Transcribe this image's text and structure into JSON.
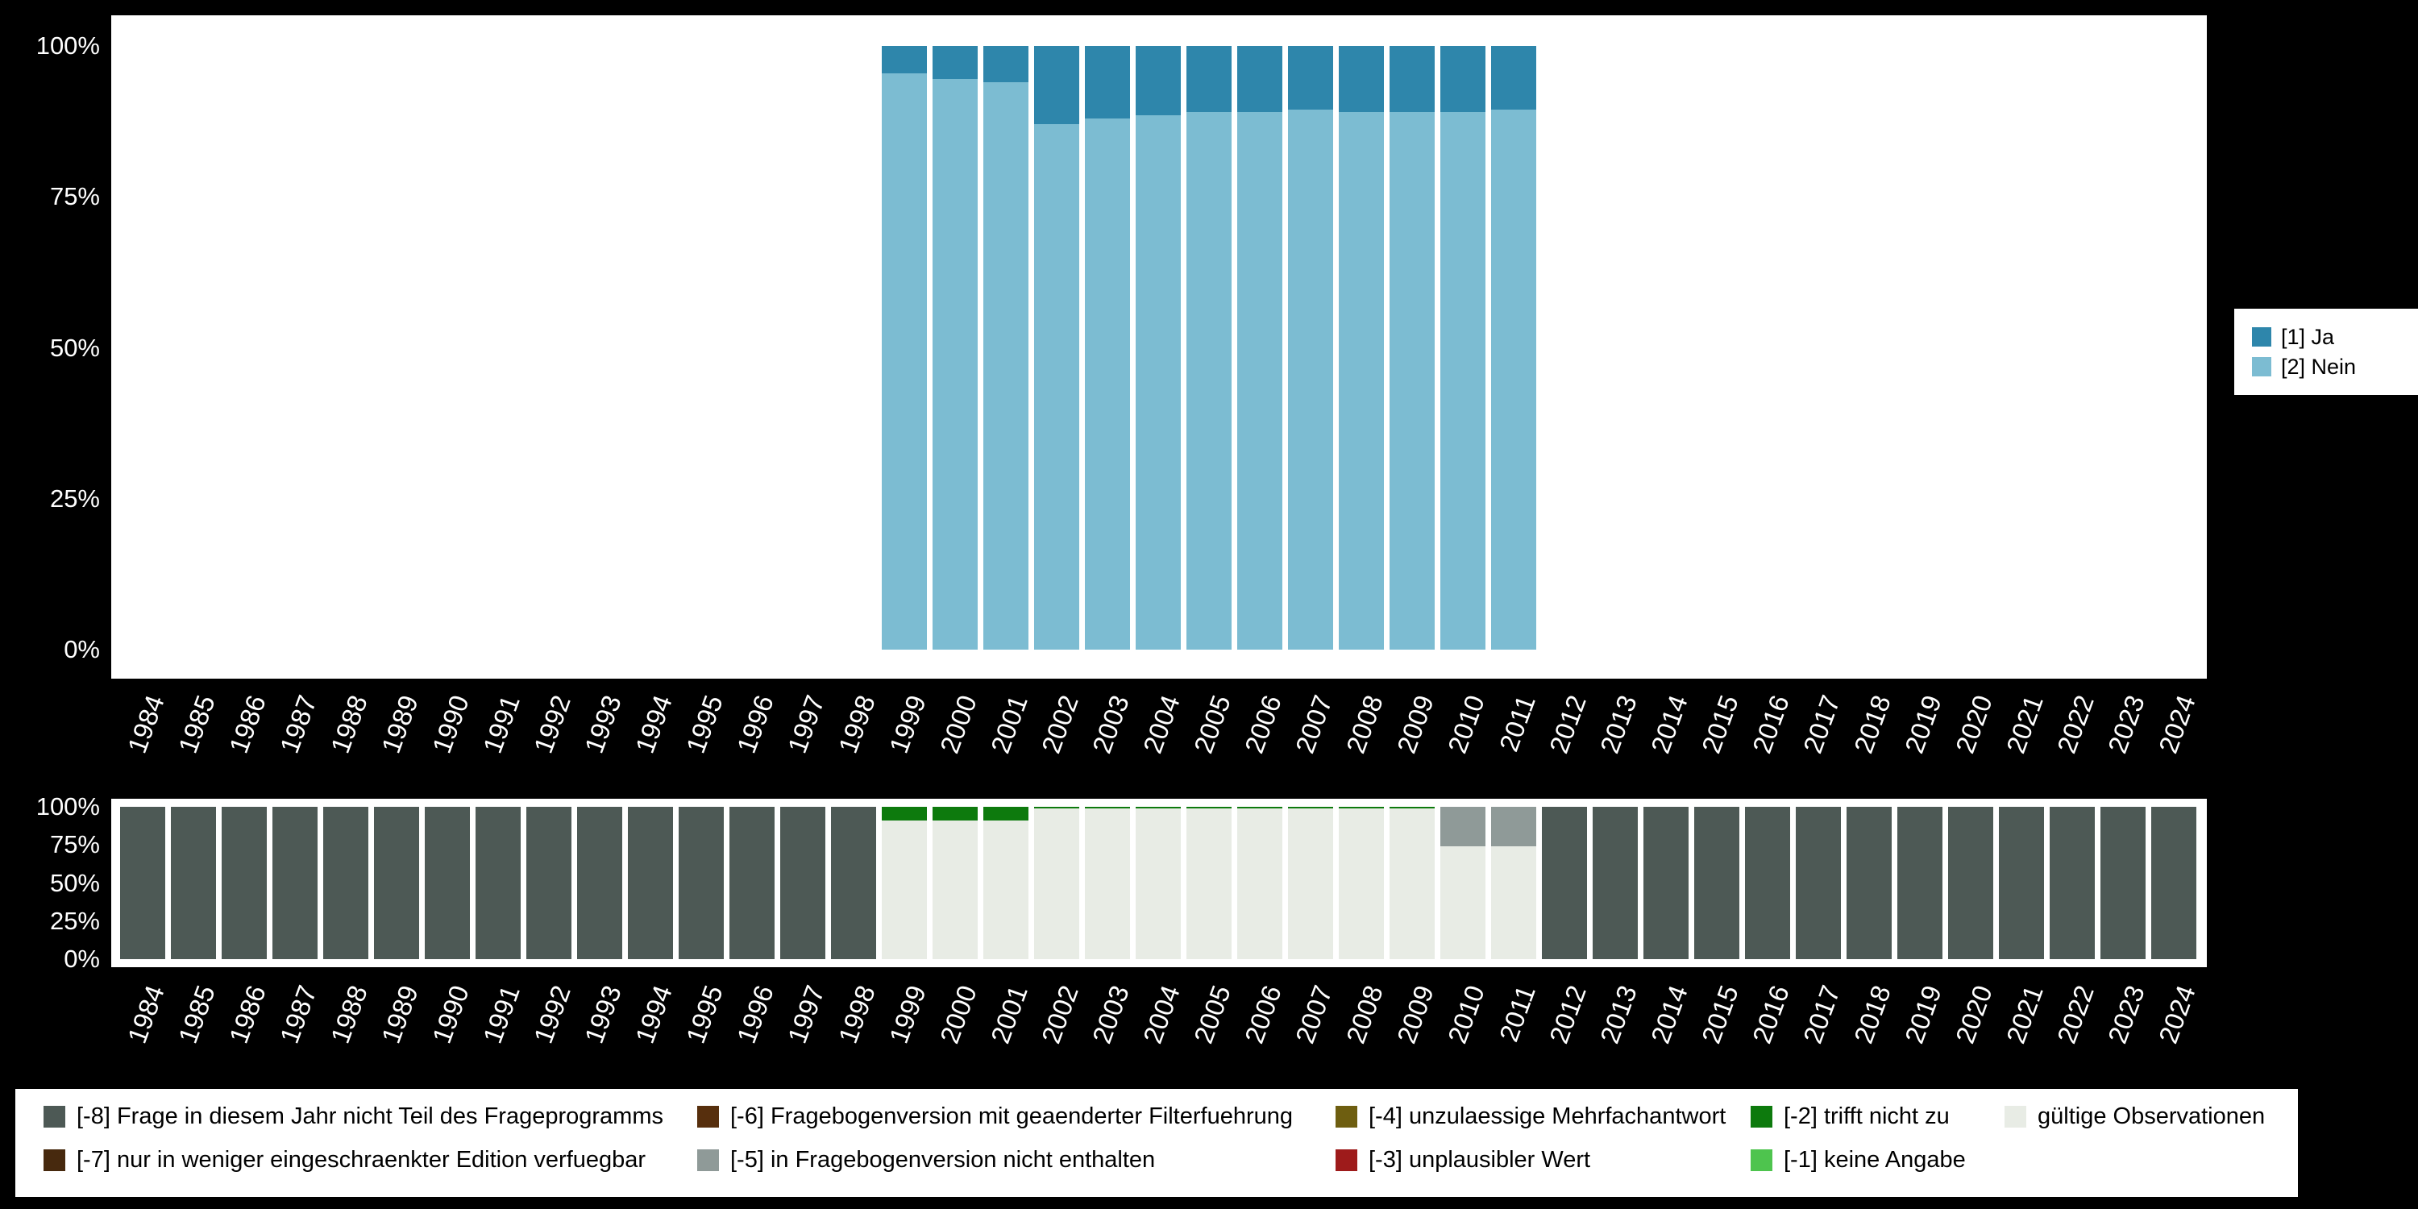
{
  "page": {
    "background": "#000000"
  },
  "years": [
    "1984",
    "1985",
    "1986",
    "1987",
    "1988",
    "1989",
    "1990",
    "1991",
    "1992",
    "1993",
    "1994",
    "1995",
    "1996",
    "1997",
    "1998",
    "1999",
    "2000",
    "2001",
    "2002",
    "2003",
    "2004",
    "2005",
    "2006",
    "2007",
    "2008",
    "2009",
    "2010",
    "2011",
    "2012",
    "2013",
    "2014",
    "2015",
    "2016",
    "2017",
    "2018",
    "2019",
    "2020",
    "2021",
    "2022",
    "2023",
    "2024"
  ],
  "series_legend": {
    "items": [
      {
        "label": "[1] Ja",
        "color": "#2e86ab"
      },
      {
        "label": "[2] Nein",
        "color": "#7cbcd2"
      }
    ]
  },
  "missing_legend": {
    "items": [
      {
        "label": "[-8] Frage in diesem Jahr nicht Teil des Frageprogramms",
        "color": "#4d5955",
        "col": 0,
        "row": 0
      },
      {
        "label": "[-7] nur in weniger eingeschraenkter Edition verfuegbar",
        "color": "#47290e",
        "col": 0,
        "row": 1
      },
      {
        "label": "[-6] Fragebogenversion mit geaenderter Filterfuehrung",
        "color": "#572f0d",
        "col": 1,
        "row": 0
      },
      {
        "label": "[-5] in Fragebogenversion nicht enthalten",
        "color": "#8f9a98",
        "col": 1,
        "row": 1
      },
      {
        "label": "[-4] unzulaessige Mehrfachantwort",
        "color": "#6e5e10",
        "col": 2,
        "row": 0
      },
      {
        "label": "[-3] unplausibler Wert",
        "color": "#9e1b1b",
        "col": 2,
        "row": 1
      },
      {
        "label": "[-2] trifft nicht zu",
        "color": "#0d7a0d",
        "col": 3,
        "row": 0
      },
      {
        "label": "[-1] keine Angabe",
        "color": "#4ec44e",
        "col": 3,
        "row": 1
      },
      {
        "label": "gültige Observationen",
        "color": "#e8ece5",
        "col": 4,
        "row": 0
      }
    ]
  },
  "chart_data": [
    {
      "type": "bar",
      "stacked": true,
      "unit": "percent",
      "title": "",
      "ylim": [
        0,
        100
      ],
      "y_ticks": [
        "100%",
        "75%",
        "50%",
        "25%",
        "0%"
      ],
      "legend_position": "right",
      "note": "series listed bottom-to-top; values are % per year 1984-2024, 0 = no bar",
      "series": [
        {
          "name": "[2] Nein",
          "color": "#7cbcd2",
          "values": [
            0,
            0,
            0,
            0,
            0,
            0,
            0,
            0,
            0,
            0,
            0,
            0,
            0,
            0,
            0,
            95.5,
            94.5,
            94,
            87,
            88,
            88.5,
            89,
            89,
            89.5,
            89,
            89,
            89,
            89.5,
            0,
            0,
            0,
            0,
            0,
            0,
            0,
            0,
            0,
            0,
            0,
            0,
            0
          ]
        },
        {
          "name": "[1] Ja",
          "color": "#2e86ab",
          "values": [
            0,
            0,
            0,
            0,
            0,
            0,
            0,
            0,
            0,
            0,
            0,
            0,
            0,
            0,
            0,
            4.5,
            5.5,
            6,
            13,
            12,
            11.5,
            11,
            11,
            10.5,
            11,
            11,
            11,
            10.5,
            0,
            0,
            0,
            0,
            0,
            0,
            0,
            0,
            0,
            0,
            0,
            0,
            0
          ]
        }
      ]
    },
    {
      "type": "bar",
      "stacked": true,
      "unit": "percent",
      "title": "",
      "ylim": [
        0,
        100
      ],
      "y_ticks": [
        "100%",
        "75%",
        "50%",
        "25%",
        "0%"
      ],
      "legend_position": "bottom",
      "note": "missing-code distribution per year; series listed bottom-to-top",
      "series": [
        {
          "name": "gültige Observationen",
          "color": "#e8ece5",
          "values": [
            0,
            0,
            0,
            0,
            0,
            0,
            0,
            0,
            0,
            0,
            0,
            0,
            0,
            0,
            0,
            91,
            91,
            91,
            99,
            99,
            99,
            99,
            99,
            99,
            99,
            99,
            74,
            74,
            0,
            0,
            0,
            0,
            0,
            0,
            0,
            0,
            0,
            0,
            0,
            0,
            0
          ]
        },
        {
          "name": "[-2] trifft nicht zu",
          "color": "#0d7a0d",
          "values": [
            0,
            0,
            0,
            0,
            0,
            0,
            0,
            0,
            0,
            0,
            0,
            0,
            0,
            0,
            0,
            9,
            9,
            9,
            1,
            1,
            1,
            1,
            1,
            1,
            1,
            1,
            0,
            0,
            0,
            0,
            0,
            0,
            0,
            0,
            0,
            0,
            0,
            0,
            0,
            0,
            0
          ]
        },
        {
          "name": "[-5] in Fragebogenversion nicht enthalten",
          "color": "#8f9a98",
          "values": [
            0,
            0,
            0,
            0,
            0,
            0,
            0,
            0,
            0,
            0,
            0,
            0,
            0,
            0,
            0,
            0,
            0,
            0,
            0,
            0,
            0,
            0,
            0,
            0,
            0,
            0,
            26,
            26,
            0,
            0,
            0,
            0,
            0,
            0,
            0,
            0,
            0,
            0,
            0,
            0,
            0
          ]
        },
        {
          "name": "[-8] Frage in diesem Jahr nicht Teil des Frageprogramms",
          "color": "#4d5955",
          "values": [
            100,
            100,
            100,
            100,
            100,
            100,
            100,
            100,
            100,
            100,
            100,
            100,
            100,
            100,
            100,
            0,
            0,
            0,
            0,
            0,
            0,
            0,
            0,
            0,
            0,
            0,
            0,
            0,
            100,
            100,
            100,
            100,
            100,
            100,
            100,
            100,
            100,
            100,
            100,
            100,
            100
          ]
        }
      ]
    }
  ]
}
